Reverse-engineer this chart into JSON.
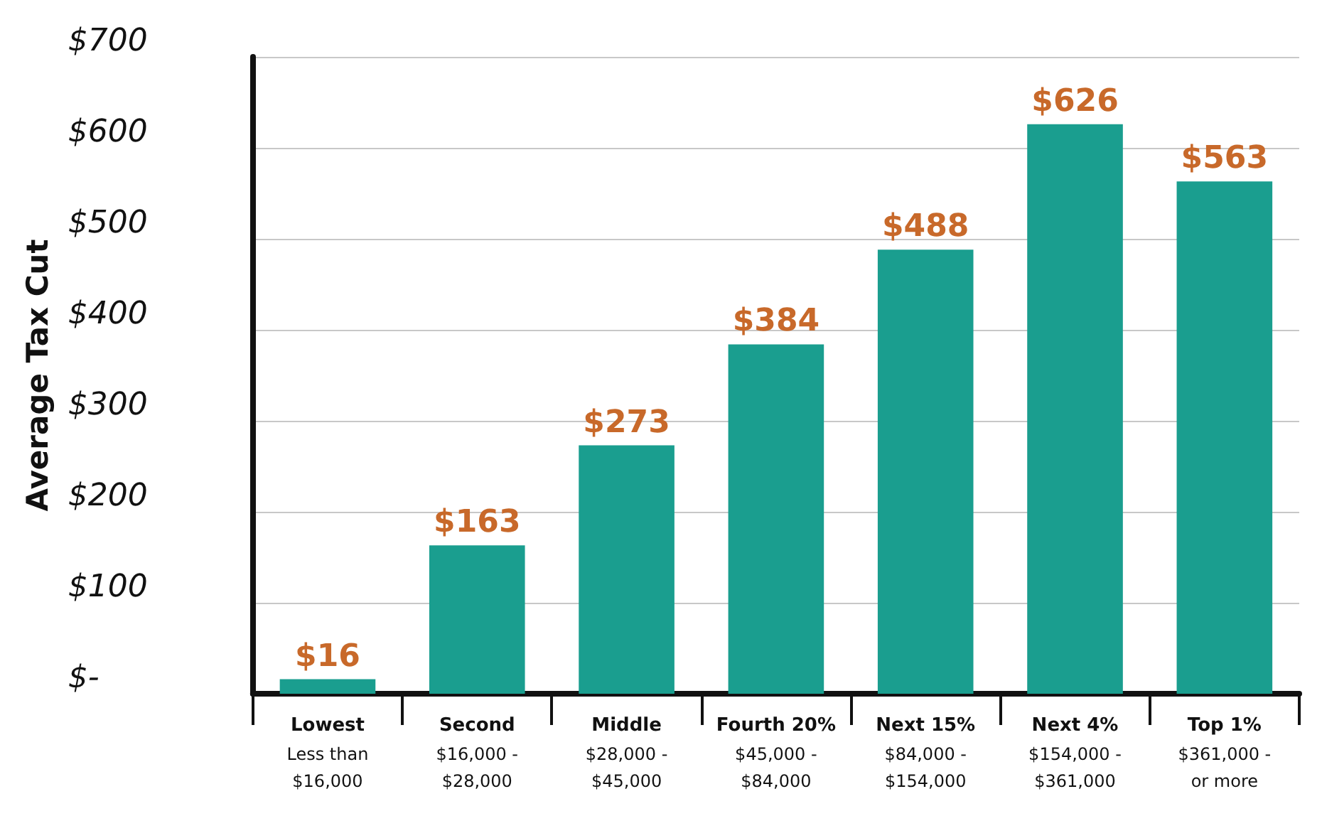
{
  "chart_data": {
    "type": "bar",
    "ylabel": "Average Tax Cut",
    "categories": [
      "Lowest\nLess than\n$16,000",
      "Second\n$16,000 -\n$28,000",
      "Middle\n$28,000 -\n$45,000",
      "Fourth 20%\n$45,000 -\n$84,000",
      "Next 15%\n$84,000 -\n$154,000",
      "Next 4%\n$154,000 -\n$361,000",
      "Top 1%\n$361,000 -\nor more"
    ],
    "values": [
      16,
      163,
      273,
      384,
      488,
      626,
      563
    ],
    "value_labels": [
      "$16",
      "$163",
      "$273",
      "$384",
      "$488",
      "$626",
      "$563"
    ],
    "color": "#1a9e8f",
    "ylim": [
      0,
      700
    ],
    "yticks": [
      {
        "value": 0,
        "label": "$-"
      },
      {
        "value": 100,
        "label": "$100"
      },
      {
        "value": 200,
        "label": "$200"
      },
      {
        "value": 300,
        "label": "$300"
      },
      {
        "value": 400,
        "label": "$400"
      },
      {
        "value": 500,
        "label": "$500"
      },
      {
        "value": 600,
        "label": "$600"
      },
      {
        "value": 700,
        "label": "$700"
      }
    ],
    "grid": "y"
  }
}
